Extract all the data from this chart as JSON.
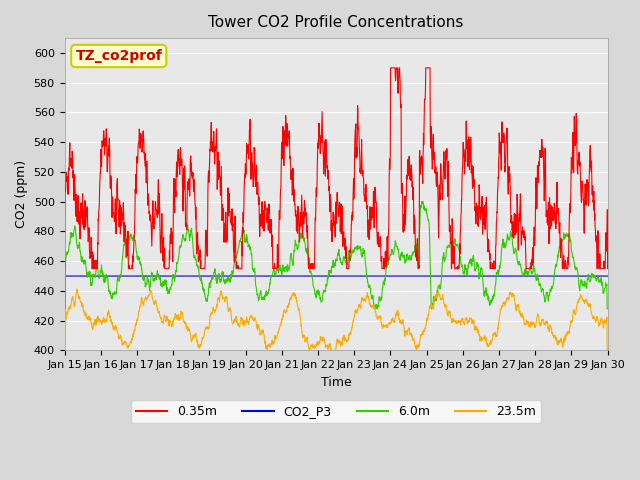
{
  "title": "Tower CO2 Profile Concentrations",
  "xlabel": "Time",
  "ylabel": "CO2 (ppm)",
  "ylim": [
    400,
    610
  ],
  "yticks": [
    400,
    420,
    440,
    460,
    480,
    500,
    520,
    540,
    560,
    580,
    600
  ],
  "background_color": "#e8e8e8",
  "plot_bg_color": "#e0e0e0",
  "legend_labels": [
    "0.35m",
    "CO2_P3",
    "6.0m",
    "23.5m"
  ],
  "legend_colors": [
    "#ff0000",
    "#0000ff",
    "#33cc00",
    "#ffaa00"
  ],
  "annotation_text": "TZ_co2prof",
  "annotation_color": "#cc0000",
  "annotation_bg": "#ffffcc",
  "annotation_border": "#cccc00",
  "x_tick_labels": [
    "Jan 15",
    "Jan 16",
    "Jan 17",
    "Jan 18",
    "Jan 19",
    "Jan 20",
    "Jan 21",
    "Jan 22",
    "Jan 23",
    "Jan 24",
    "Jan 25",
    "Jan 26",
    "Jan 27",
    "Jan 28",
    "Jan 29",
    "Jan 30"
  ],
  "n_days": 15,
  "seed": 42
}
